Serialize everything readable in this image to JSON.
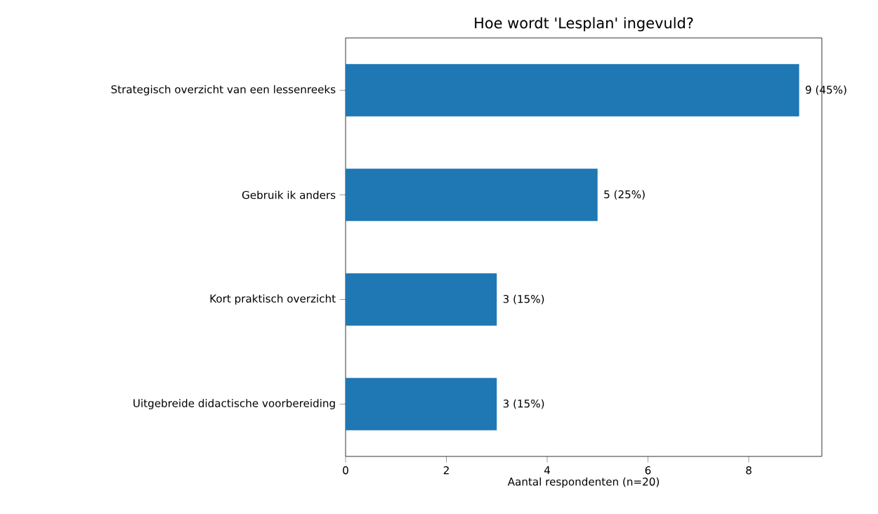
{
  "chart_data": {
    "type": "bar",
    "orientation": "horizontal",
    "title": "Hoe wordt 'Lesplan' ingevuld?",
    "xlabel": "Aantal respondenten (n=20)",
    "categories": [
      "Strategisch overzicht van een lessenreeks",
      "Gebruik ik anders",
      "Kort praktisch overzicht",
      "Uitgebreide didactische voorbereiding"
    ],
    "values": [
      9,
      5,
      3,
      3
    ],
    "value_labels": [
      "9 (45%)",
      "5 (25%)",
      "3 (15%)",
      "3 (15%)"
    ],
    "color": "#1f77b4",
    "xlim": [
      0,
      9.45
    ],
    "xticks": [
      0,
      2,
      4,
      6,
      8
    ]
  }
}
